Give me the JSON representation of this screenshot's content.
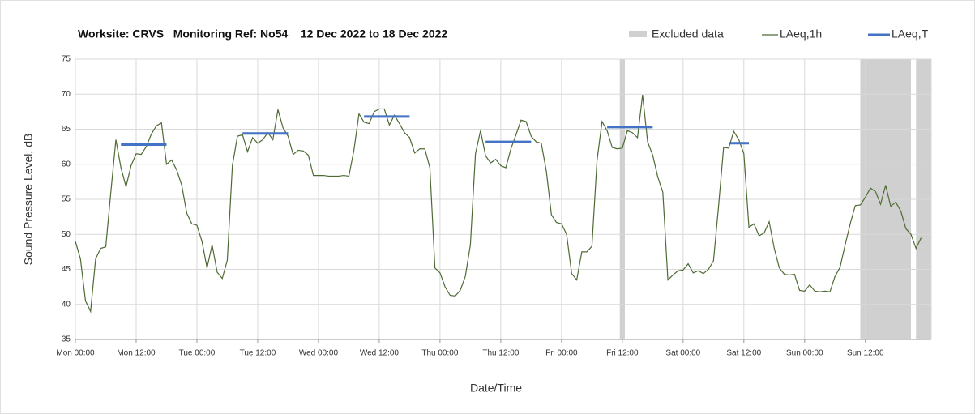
{
  "chart_data": {
    "type": "line",
    "title": "Worksite: CRVS   Monitoring Ref: No54    12 Dec 2022 to 18 Dec 2022",
    "xlabel": "Date/Time",
    "ylabel": "Sound Pressure Level, dB",
    "x": [
      0,
      1,
      2,
      3,
      4,
      5,
      6,
      7,
      8,
      9,
      10,
      11,
      12,
      13,
      14,
      15,
      16,
      17,
      18,
      19,
      20,
      21,
      22,
      23,
      24,
      25,
      26,
      27,
      28,
      29,
      30,
      31,
      32,
      33,
      34,
      35,
      36,
      37,
      38,
      39,
      40,
      41,
      42,
      43,
      44,
      45,
      46,
      47,
      48,
      49,
      50,
      51,
      52,
      53,
      54,
      55,
      56,
      57,
      58,
      59,
      60,
      61,
      62,
      63,
      64,
      65,
      66,
      67,
      68,
      69,
      70,
      71,
      72,
      73,
      74,
      75,
      76,
      77,
      78,
      79,
      80,
      81,
      82,
      83,
      84,
      85,
      86,
      87,
      88,
      89,
      90,
      91,
      92,
      93,
      94,
      95,
      96,
      97,
      98,
      99,
      100,
      101,
      102,
      103,
      104,
      105,
      106,
      107,
      108,
      109,
      110,
      111,
      112,
      113,
      114,
      115,
      116,
      117,
      118,
      119,
      120,
      121,
      122,
      123,
      124,
      125,
      126,
      127,
      128,
      129,
      130,
      131,
      132,
      133,
      134,
      135,
      136,
      137,
      138,
      139,
      140,
      141,
      142,
      143,
      144,
      145,
      146,
      147,
      148,
      149,
      150,
      151,
      152,
      153,
      154,
      155,
      156,
      157,
      158,
      159,
      160,
      161,
      162,
      163,
      164,
      165,
      166,
      167
    ],
    "series": [
      {
        "name": "LAeq,1h",
        "color": "#4e6b34",
        "values": [
          49,
          46.5,
          40.5,
          39,
          46.5,
          48,
          48.2,
          56,
          63.5,
          59.5,
          56.8,
          59.8,
          61.5,
          61.4,
          62.5,
          64.3,
          65.5,
          65.9,
          60,
          60.6,
          59.2,
          57,
          53,
          51.5,
          51.3,
          49,
          45.2,
          48.5,
          44.6,
          43.7,
          46.3,
          59.8,
          64,
          64.2,
          61.8,
          63.8,
          63,
          63.5,
          64.5,
          63.5,
          67.8,
          65.2,
          64,
          61.4,
          62,
          61.9,
          61.3,
          58.4,
          58.4,
          58.4,
          58.3,
          58.3,
          58.3,
          58.4,
          58.3,
          62,
          67.2,
          66,
          65.8,
          67.5,
          67.9,
          67.9,
          65.6,
          67,
          65.8,
          64.5,
          63.8,
          61.6,
          62.2,
          62.2,
          59.5,
          45.2,
          44.5,
          42.5,
          41.3,
          41.2,
          42,
          44,
          48.5,
          61.5,
          64.8,
          61.2,
          60.2,
          60.7,
          59.8,
          59.5,
          62.2,
          64.2,
          66.3,
          66.1,
          64,
          63.2,
          63,
          59,
          52.8,
          51.7,
          51.5,
          50,
          44.4,
          43.5,
          47.5,
          47.5,
          48.3,
          60.5,
          66.1,
          64.8,
          62.4,
          62.2,
          62.3,
          64.8,
          64.5,
          63.8,
          69.9,
          63.2,
          61.3,
          58.2,
          56,
          43.5,
          44.2,
          44.8,
          44.9,
          45.8,
          44.5,
          44.8,
          44.4,
          45,
          46.2,
          54,
          62.4,
          62.3,
          64.7,
          63.5,
          61.5,
          51,
          51.5,
          49.8,
          50.2,
          51.8,
          48,
          45.2,
          44.3,
          44.2,
          44.3,
          42,
          41.9,
          42.8,
          41.9,
          41.8,
          41.9,
          41.8,
          44,
          45.3,
          48.5,
          51.5,
          54.1,
          54.2,
          55.3,
          56.6,
          56.1,
          54.3,
          57,
          54,
          54.6,
          53.3,
          50.8,
          50,
          48,
          49.5
        ]
      }
    ],
    "segments": {
      "name": "LAeq,T",
      "color": "#4472c4",
      "items": [
        {
          "x": [
            9,
            18
          ],
          "value": 62.8
        },
        {
          "x": [
            33,
            42
          ],
          "value": 64.4
        },
        {
          "x": [
            57,
            66
          ],
          "value": 66.8
        },
        {
          "x": [
            81,
            90
          ],
          "value": 63.2
        },
        {
          "x": [
            105,
            114
          ],
          "value": 65.3
        },
        {
          "x": [
            129,
            133
          ],
          "value": 63
        }
      ]
    },
    "excluded": {
      "name": "Excluded data",
      "color": "#d0d0d0",
      "ranges": [
        [
          107.5,
          108.5
        ],
        [
          155,
          165
        ],
        [
          166,
          169
        ]
      ]
    },
    "xlim": [
      0,
      169
    ],
    "xticks": [
      {
        "value": 0,
        "label": "Mon 00:00"
      },
      {
        "value": 12,
        "label": "Mon 12:00"
      },
      {
        "value": 24,
        "label": "Tue 00:00"
      },
      {
        "value": 36,
        "label": "Tue 12:00"
      },
      {
        "value": 48,
        "label": "Wed 00:00"
      },
      {
        "value": 60,
        "label": "Wed 12:00"
      },
      {
        "value": 72,
        "label": "Thu 00:00"
      },
      {
        "value": 84,
        "label": "Thu 12:00"
      },
      {
        "value": 96,
        "label": "Fri 00:00"
      },
      {
        "value": 108,
        "label": "Fri 12:00"
      },
      {
        "value": 120,
        "label": "Sat 00:00"
      },
      {
        "value": 132,
        "label": "Sat 12:00"
      },
      {
        "value": 144,
        "label": "Sun 00:00"
      },
      {
        "value": 156,
        "label": "Sun 12:00"
      }
    ],
    "ylim": [
      35,
      75
    ],
    "yticks": [
      35,
      40,
      45,
      50,
      55,
      60,
      65,
      70,
      75
    ],
    "grid": true
  }
}
